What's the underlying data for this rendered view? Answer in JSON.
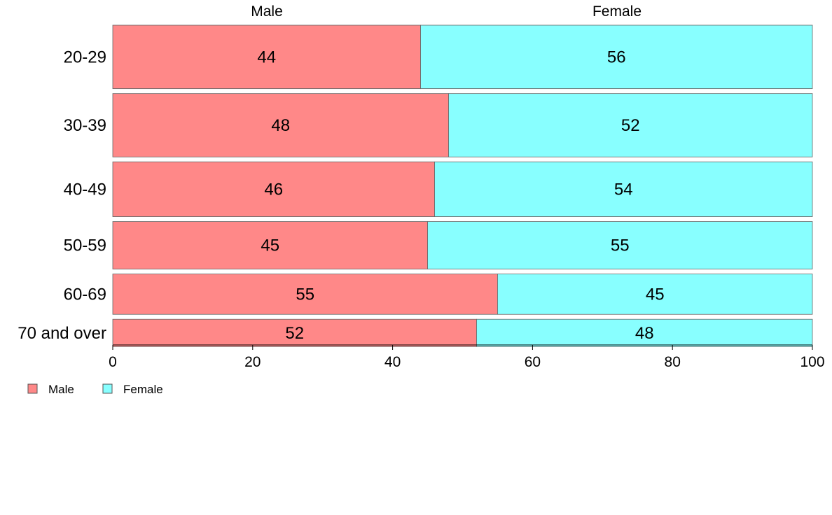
{
  "chart_data": {
    "type": "bar",
    "orientation": "horizontal",
    "stacked": true,
    "categories": [
      "20-29",
      "30-39",
      "40-49",
      "50-59",
      "60-69",
      "70 and over"
    ],
    "series": [
      {
        "name": "Male",
        "values": [
          44,
          48,
          46,
          45,
          55,
          52
        ],
        "color": "#FF8888"
      },
      {
        "name": "Female",
        "values": [
          56,
          52,
          54,
          55,
          45,
          48
        ],
        "color": "#88FFFF"
      }
    ],
    "data_labels": {
      "male": [
        "44",
        "48",
        "46",
        "45",
        "55",
        "52"
      ],
      "female": [
        "56",
        "52",
        "54",
        "55",
        "45",
        "48"
      ]
    },
    "top_labels": [
      "Male",
      "Female"
    ],
    "xlim": [
      0,
      100
    ],
    "xticks": [
      "0",
      "20",
      "40",
      "60",
      "80",
      "100"
    ],
    "category_widths": [
      0.22,
      0.22,
      0.19,
      0.165,
      0.14,
      0.095
    ],
    "grid": false,
    "legend": {
      "position": "bottom-left",
      "entries": [
        "Male",
        "Female"
      ]
    }
  }
}
